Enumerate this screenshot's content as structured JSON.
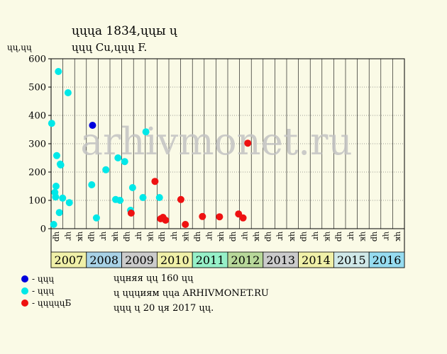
{
  "header": {
    "title": "ųųųa 1834,ųųы ų",
    "subtitle": "ųųų Cu,ųųų F."
  },
  "chart_data": {
    "type": "scatter",
    "ylabel": "ųų,ųų",
    "ylim": [
      0,
      600
    ],
    "yticks": [
      0,
      100,
      200,
      300,
      400,
      500,
      600
    ],
    "watermark": "arhivmonet.ru",
    "years": [
      "2007",
      "2008",
      "2009",
      "2010",
      "2011",
      "2012",
      "2013",
      "2014",
      "2015",
      "2016"
    ],
    "year_colors": [
      "#f0f0a8",
      "#a8d2e6",
      "#cbcbcb",
      "#f0f0a8",
      "#96f0c8",
      "#b8d89a",
      "#cbcbcb",
      "#f0f0a8",
      "#cfe8e8",
      "#96dcf0"
    ],
    "month_labels": [
      "ųp",
      "ųr",
      "ųк"
    ],
    "legend": [
      {
        "label": "- ųųų",
        "color": "#0000dd"
      },
      {
        "label": "- ųųų",
        "color": "#00e8e8"
      },
      {
        "label": "- ųųųųųБ",
        "color": "#ee1111"
      }
    ],
    "series": [
      {
        "color": "#00e8e8",
        "points": [
          [
            0.05,
            372
          ],
          [
            0.22,
            15
          ],
          [
            0.32,
            128
          ],
          [
            0.38,
            112
          ],
          [
            0.42,
            150
          ],
          [
            0.48,
            258
          ],
          [
            0.62,
            555
          ],
          [
            0.7,
            57
          ],
          [
            0.78,
            228
          ],
          [
            0.82,
            225
          ],
          [
            0.98,
            108
          ],
          [
            1.44,
            480
          ],
          [
            1.55,
            92
          ],
          [
            3.45,
            155
          ],
          [
            3.85,
            38
          ],
          [
            4.65,
            208
          ],
          [
            5.48,
            103
          ],
          [
            5.68,
            250
          ],
          [
            5.85,
            100
          ],
          [
            6.25,
            237
          ],
          [
            6.75,
            65
          ],
          [
            6.92,
            145
          ],
          [
            7.8,
            110
          ],
          [
            8.05,
            342
          ],
          [
            9.2,
            110
          ]
        ]
      },
      {
        "color": "#0000dd",
        "points": [
          [
            3.52,
            365
          ]
        ]
      },
      {
        "color": "#ee1111",
        "points": [
          [
            6.8,
            55
          ],
          [
            8.82,
            167
          ],
          [
            9.3,
            35
          ],
          [
            9.5,
            40
          ],
          [
            9.72,
            30
          ],
          [
            11.02,
            103
          ],
          [
            11.4,
            15
          ],
          [
            12.85,
            43
          ],
          [
            14.3,
            42
          ],
          [
            15.92,
            52
          ],
          [
            16.3,
            38
          ],
          [
            16.7,
            302
          ]
        ]
      }
    ]
  },
  "notes": [
    "ųųняя ųų 160 ųų",
    "ų ųųųиям ųųa ARHIVMONET.RU",
    "ųųų ų 20 ųя 2017 ųų."
  ]
}
